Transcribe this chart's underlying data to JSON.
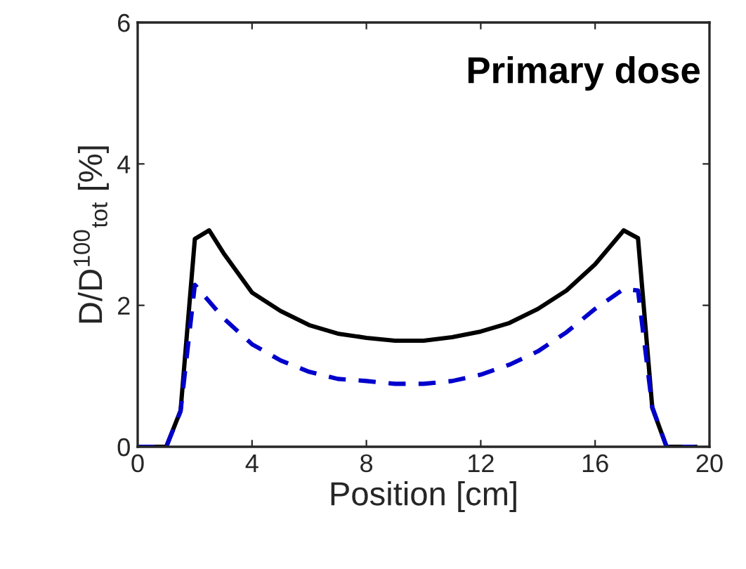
{
  "chart_data": {
    "type": "line",
    "xlabel": "Position [cm]",
    "ylabel": "D/D$^{100}$$_{tot}$ [%]",
    "annotations": [
      "Primary dose"
    ],
    "xlim": [
      0,
      20
    ],
    "xticks": [
      0,
      4,
      8,
      12,
      16,
      20
    ],
    "ylim": [
      0,
      6
    ],
    "yticks": [
      0,
      2,
      4,
      6
    ],
    "grid": false,
    "legend": false,
    "series": [
      {
        "color": "#000000",
        "line_style": "solid",
        "x": [
          0,
          1,
          1.5,
          2,
          2.5,
          3,
          4,
          5,
          6,
          7,
          8,
          9,
          10,
          11,
          12,
          13,
          14,
          15,
          16,
          17,
          17.5,
          18,
          18.5,
          19.5
        ],
        "values": [
          0,
          0,
          0.51,
          2.94,
          3.06,
          2.74,
          2.18,
          1.92,
          1.72,
          1.6,
          1.54,
          1.5,
          1.5,
          1.55,
          1.63,
          1.75,
          1.95,
          2.21,
          2.58,
          3.06,
          2.95,
          0.55,
          0,
          0
        ]
      },
      {
        "color": "#0000cc",
        "line_style": "dashed",
        "x": [
          0,
          1,
          1.5,
          2,
          3,
          4,
          5,
          6,
          7,
          8,
          9,
          10,
          11,
          12,
          13,
          14,
          15,
          16,
          17,
          17.5,
          18,
          18.5,
          19.5
        ],
        "values": [
          0,
          0,
          0.5,
          2.29,
          1.82,
          1.45,
          1.22,
          1.06,
          0.96,
          0.93,
          0.89,
          0.89,
          0.93,
          1.02,
          1.16,
          1.35,
          1.62,
          1.95,
          2.23,
          2.21,
          0.56,
          0,
          0
        ]
      }
    ]
  }
}
